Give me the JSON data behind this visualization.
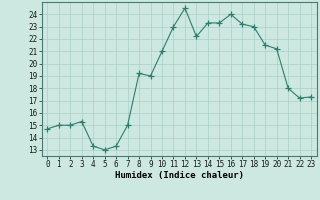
{
  "x": [
    0,
    1,
    2,
    3,
    4,
    5,
    6,
    7,
    8,
    9,
    10,
    11,
    12,
    13,
    14,
    15,
    16,
    17,
    18,
    19,
    20,
    21,
    22,
    23
  ],
  "y": [
    14.7,
    15.0,
    15.0,
    15.3,
    13.3,
    13.0,
    13.3,
    15.0,
    19.2,
    19.0,
    21.0,
    23.0,
    24.5,
    22.2,
    23.3,
    23.3,
    24.0,
    23.2,
    23.0,
    21.5,
    21.2,
    18.0,
    17.2,
    17.3
  ],
  "line_color": "#2e7d6e",
  "marker": "+",
  "marker_size": 4,
  "bg_color": "#cce8e0",
  "grid_color": "#aacfc8",
  "xlabel": "Humidex (Indice chaleur)",
  "xlim": [
    -0.5,
    23.5
  ],
  "ylim": [
    12.5,
    25.0
  ],
  "yticks": [
    13,
    14,
    15,
    16,
    17,
    18,
    19,
    20,
    21,
    22,
    23,
    24
  ],
  "xticks": [
    0,
    1,
    2,
    3,
    4,
    5,
    6,
    7,
    8,
    9,
    10,
    11,
    12,
    13,
    14,
    15,
    16,
    17,
    18,
    19,
    20,
    21,
    22,
    23
  ],
  "tick_fontsize": 5.5,
  "label_fontsize": 6.5
}
